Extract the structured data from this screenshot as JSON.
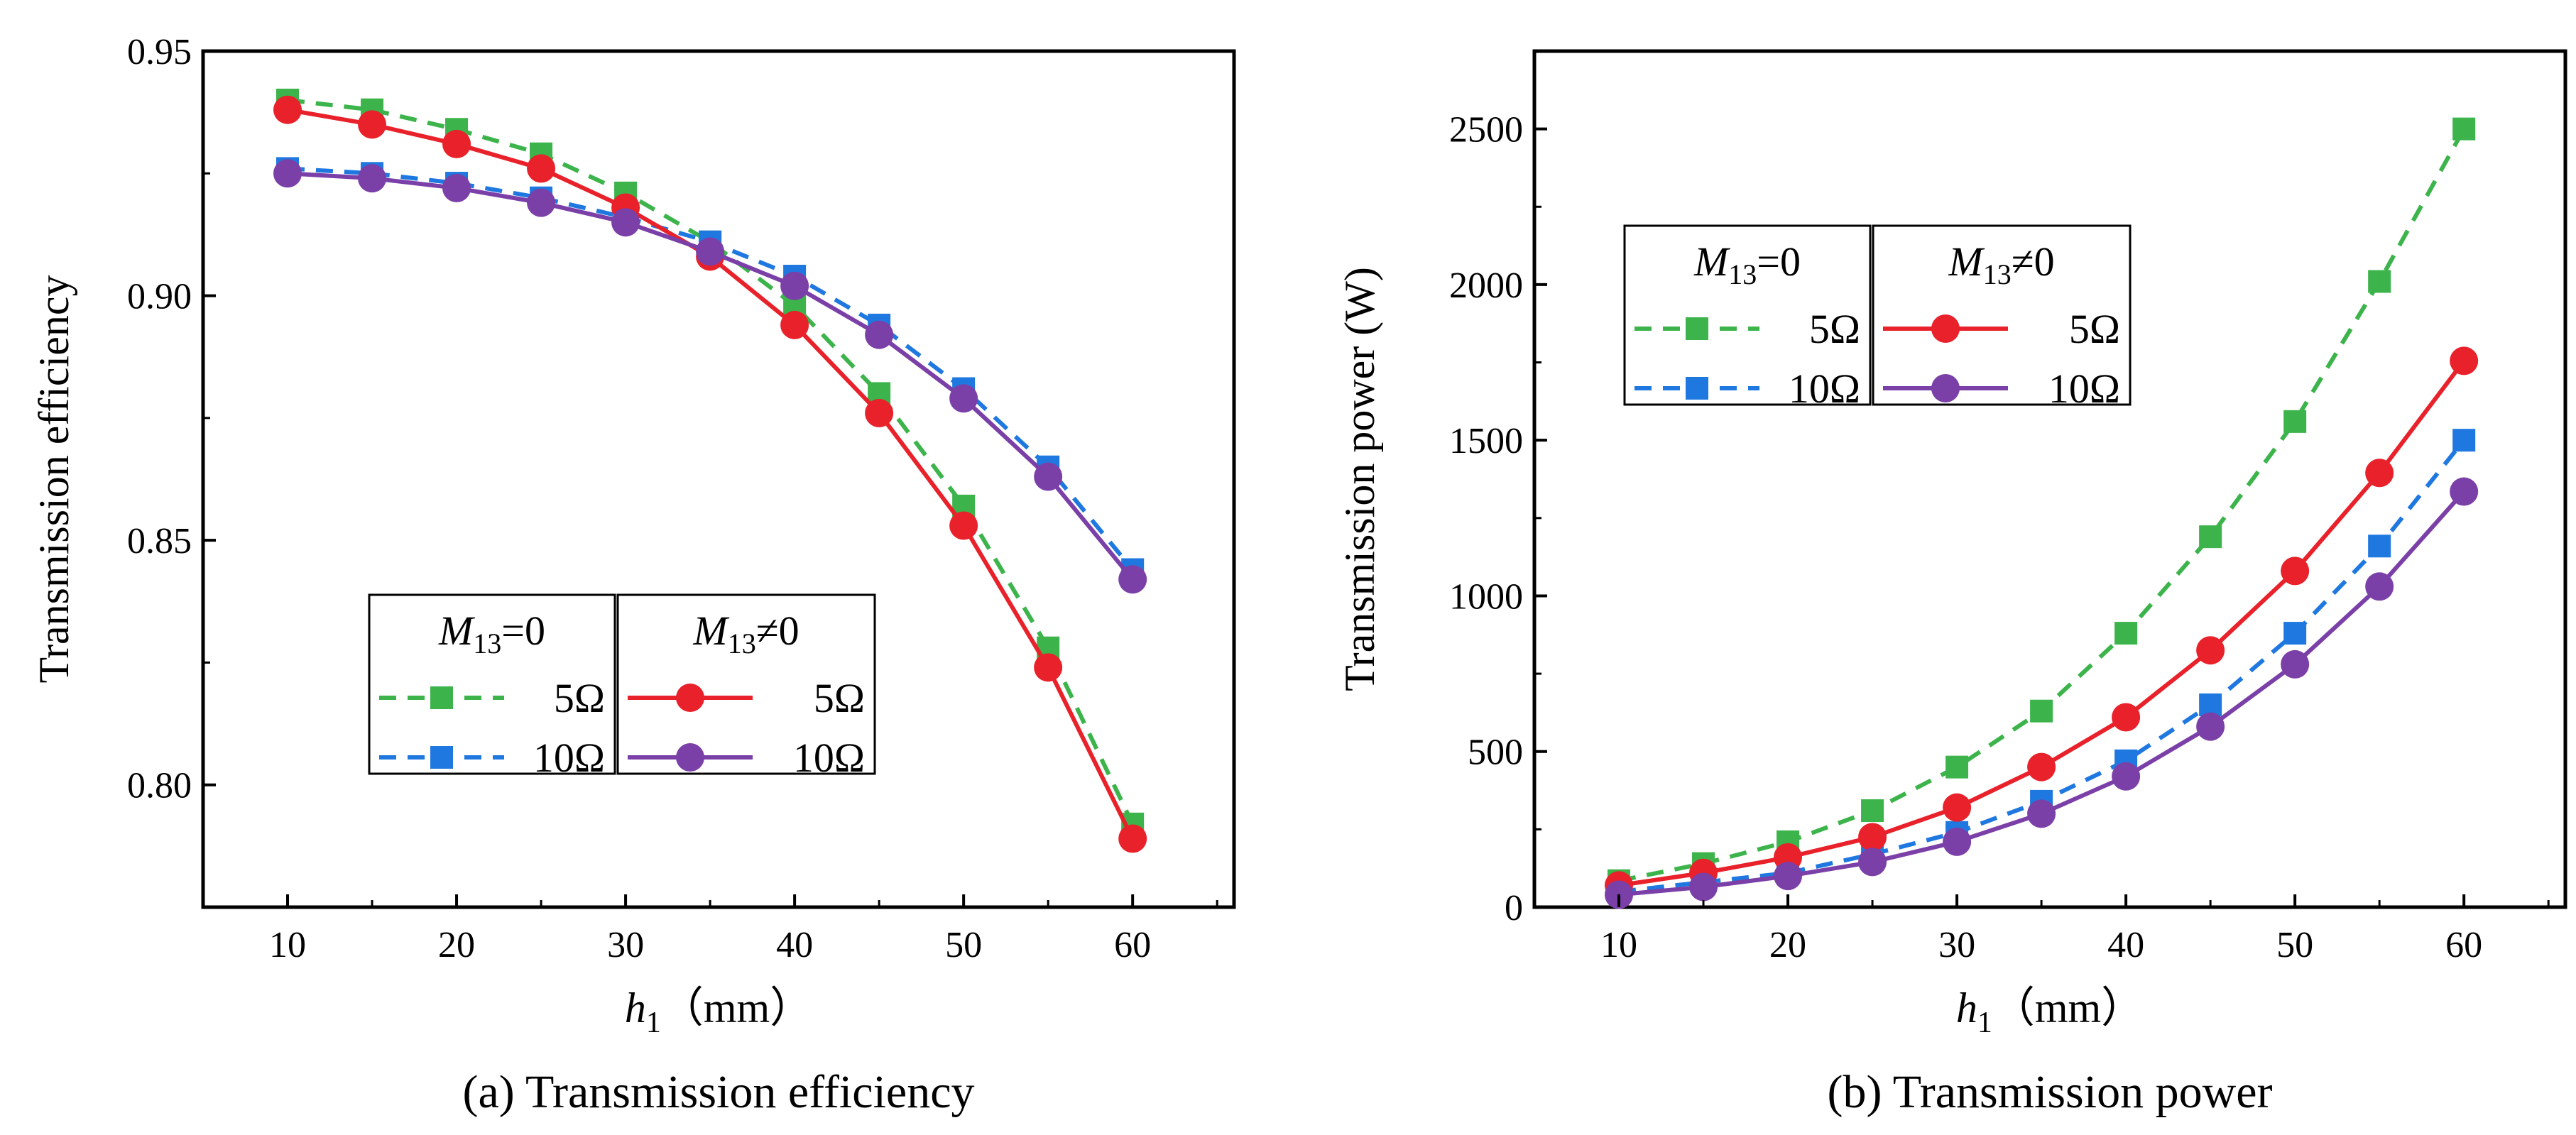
{
  "chart_data": [
    {
      "type": "line",
      "caption": "(a) Transmission efficiency",
      "xlabel_var": "h",
      "xlabel_sub": "1",
      "xlabel_unit": "（mm）",
      "ylabel": "Transmission efficiency",
      "xlim": [
        5,
        66
      ],
      "ylim": [
        0.775,
        0.95
      ],
      "xticks": [
        10,
        20,
        30,
        40,
        50,
        60
      ],
      "xtick_labels": [
        "10",
        "20",
        "30",
        "40",
        "50",
        "60"
      ],
      "yticks": [
        0.8,
        0.85,
        0.9,
        0.95
      ],
      "ytick_labels": [
        "0.80",
        "0.85",
        "0.90",
        "0.95"
      ],
      "legend_placement": "lower-left-center",
      "legend_groups": [
        {
          "var": "M",
          "sub": "13",
          "rel": "=0",
          "entries": [
            "5Ω",
            "10Ω"
          ]
        },
        {
          "var": "M",
          "sub": "13",
          "rel": "≠0",
          "entries": [
            "5Ω",
            "10Ω"
          ]
        }
      ],
      "x": [
        10,
        15,
        20,
        25,
        30,
        35,
        40,
        45,
        50,
        55,
        60
      ],
      "series": [
        {
          "name": "M13=0 5Ω",
          "style": "dashed",
          "marker": "square",
          "color": "#3cb44b",
          "values": [
            0.94,
            0.938,
            0.934,
            0.929,
            0.921,
            0.911,
            0.898,
            0.88,
            0.857,
            0.828,
            0.792
          ]
        },
        {
          "name": "M13=0 10Ω",
          "style": "dashed",
          "marker": "square",
          "color": "#1f78e0",
          "values": [
            0.926,
            0.925,
            0.923,
            0.92,
            0.916,
            0.911,
            0.904,
            0.894,
            0.881,
            0.865,
            0.844
          ]
        },
        {
          "name": "M13≠0 5Ω",
          "style": "solid",
          "marker": "circle",
          "color": "#e8212a",
          "values": [
            0.938,
            0.935,
            0.931,
            0.926,
            0.918,
            0.908,
            0.894,
            0.876,
            0.853,
            0.824,
            0.789
          ]
        },
        {
          "name": "M13≠0 10Ω",
          "style": "solid",
          "marker": "circle",
          "color": "#7b3fa8",
          "values": [
            0.925,
            0.924,
            0.922,
            0.919,
            0.915,
            0.909,
            0.902,
            0.892,
            0.879,
            0.863,
            0.842
          ]
        }
      ]
    },
    {
      "type": "line",
      "caption": "(b) Transmission power",
      "xlabel_var": "h",
      "xlabel_sub": "1",
      "xlabel_unit": "（mm）",
      "ylabel": "Transmission power (W)",
      "xlim": [
        5,
        66
      ],
      "ylim": [
        0,
        2750
      ],
      "xticks": [
        10,
        20,
        30,
        40,
        50,
        60
      ],
      "xtick_labels": [
        "10",
        "20",
        "30",
        "40",
        "50",
        "60"
      ],
      "yticks": [
        0,
        500,
        1000,
        1500,
        2000,
        2500
      ],
      "ytick_labels": [
        "0",
        "500",
        "1000",
        "1500",
        "2000",
        "2500"
      ],
      "legend_placement": "upper-left",
      "legend_groups": [
        {
          "var": "M",
          "sub": "13",
          "rel": "=0",
          "entries": [
            "5Ω",
            "10Ω"
          ]
        },
        {
          "var": "M",
          "sub": "13",
          "rel": "≠0",
          "entries": [
            "5Ω",
            "10Ω"
          ]
        }
      ],
      "x": [
        10,
        15,
        20,
        25,
        30,
        35,
        40,
        45,
        50,
        55,
        60
      ],
      "series": [
        {
          "name": "M13=0 5Ω",
          "style": "dashed",
          "marker": "square",
          "color": "#3cb44b",
          "values": [
            85,
            140,
            210,
            310,
            450,
            630,
            880,
            1190,
            1560,
            2010,
            2500
          ]
        },
        {
          "name": "M13=0 10Ω",
          "style": "dashed",
          "marker": "square",
          "color": "#1f78e0",
          "values": [
            50,
            80,
            110,
            170,
            240,
            340,
            470,
            650,
            880,
            1160,
            1500
          ]
        },
        {
          "name": "M13≠0 5Ω",
          "style": "solid",
          "marker": "circle",
          "color": "#e8212a",
          "values": [
            70,
            110,
            160,
            225,
            320,
            450,
            610,
            825,
            1080,
            1395,
            1755
          ]
        },
        {
          "name": "M13≠0 10Ω",
          "style": "solid",
          "marker": "circle",
          "color": "#7b3fa8",
          "values": [
            40,
            65,
            100,
            145,
            210,
            300,
            420,
            580,
            780,
            1030,
            1335
          ]
        }
      ]
    }
  ]
}
